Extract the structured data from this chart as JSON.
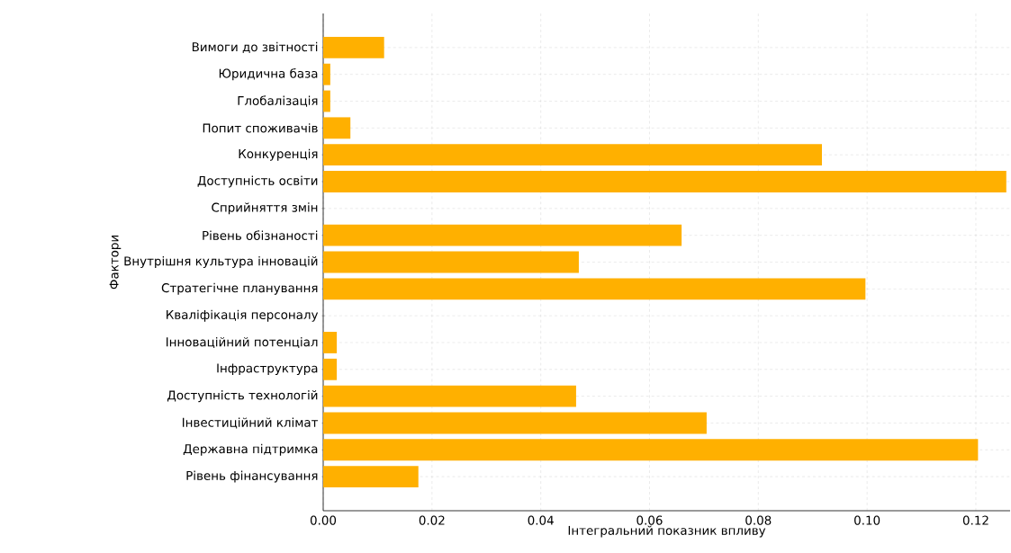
{
  "chart_data": {
    "type": "bar",
    "orientation": "horizontal",
    "xlabel": "Інтегральний показник впливу",
    "ylabel": "Фактори",
    "categories": [
      "Вимоги до звітності",
      "Юридична база",
      "Глобалізація",
      "Попит споживачів",
      "Конкуренція",
      "Доступність освіти",
      "Сприйняття змін",
      "Рівень обізнаності",
      "Внутрішня культура інновацій",
      "Стратегічне планування",
      "Кваліфікація персоналу",
      "Інноваційний потенціал",
      "Інфраструктура",
      "Доступність технологій",
      "Інвестиційний клімат",
      "Державна підтримка",
      "Рівень фінансування"
    ],
    "values": [
      0.0112,
      0.0013,
      0.0013,
      0.005,
      0.0917,
      0.1256,
      0,
      0.0659,
      0.047,
      0.0997,
      0,
      0.0025,
      0.0025,
      0.0465,
      0.0705,
      0.1204,
      0.0175
    ],
    "color": "#ffb000",
    "xlim": [
      0,
      0.1263
    ],
    "xticks": [
      {
        "value": 0,
        "label": "0.00"
      },
      {
        "value": 0.02,
        "label": "0.02"
      },
      {
        "value": 0.04,
        "label": "0.04"
      },
      {
        "value": 0.06,
        "label": "0.06"
      },
      {
        "value": 0.08,
        "label": "0.08"
      },
      {
        "value": 0.1,
        "label": "0.10"
      },
      {
        "value": 0.12,
        "label": "0.12"
      }
    ],
    "grid": true
  }
}
